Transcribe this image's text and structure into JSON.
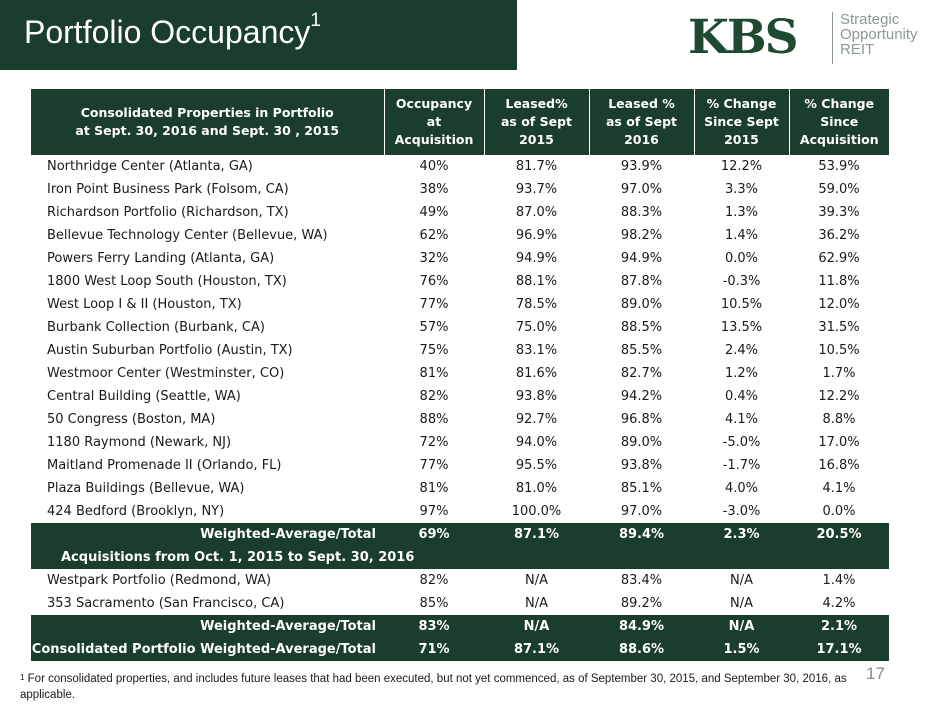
{
  "header": {
    "title": "Portfolio Occupancy",
    "title_sup": "1"
  },
  "logo": {
    "name": "KBS",
    "line1": "Strategic",
    "line2": "Opportunity",
    "line3": "REIT"
  },
  "table": {
    "headers": [
      "Consolidated Properties in Portfolio\nat Sept. 30, 2016 and Sept. 30 , 2015",
      "Occupancy at\nAcquisition",
      "Leased%\nas of Sept 2015",
      "Leased %\nas of Sept 2016",
      "% Change\nSince Sept\n2015",
      "% Change\nSince\nAcquisition"
    ],
    "rows": [
      [
        "Northridge Center (Atlanta, GA)",
        "40%",
        "81.7%",
        "93.9%",
        "12.2%",
        "53.9%"
      ],
      [
        "Iron Point Business Park (Folsom, CA)",
        "38%",
        "93.7%",
        "97.0%",
        "3.3%",
        "59.0%"
      ],
      [
        "Richardson Portfolio (Richardson, TX)",
        "49%",
        "87.0%",
        "88.3%",
        "1.3%",
        "39.3%"
      ],
      [
        "Bellevue Technology Center (Bellevue, WA)",
        "62%",
        "96.9%",
        "98.2%",
        "1.4%",
        "36.2%"
      ],
      [
        "Powers Ferry Landing (Atlanta, GA)",
        "32%",
        "94.9%",
        "94.9%",
        "0.0%",
        "62.9%"
      ],
      [
        "1800 West Loop South (Houston, TX)",
        "76%",
        "88.1%",
        "87.8%",
        "-0.3%",
        "11.8%"
      ],
      [
        "West Loop I & II (Houston, TX)",
        "77%",
        "78.5%",
        "89.0%",
        "10.5%",
        "12.0%"
      ],
      [
        "Burbank Collection (Burbank, CA)",
        "57%",
        "75.0%",
        "88.5%",
        "13.5%",
        "31.5%"
      ],
      [
        "Austin Suburban Portfolio (Austin, TX)",
        "75%",
        "83.1%",
        "85.5%",
        "2.4%",
        "10.5%"
      ],
      [
        "Westmoor Center (Westminster, CO)",
        "81%",
        "81.6%",
        "82.7%",
        "1.2%",
        "1.7%"
      ],
      [
        "Central Building (Seattle, WA)",
        "82%",
        "93.8%",
        "94.2%",
        "0.4%",
        "12.2%"
      ],
      [
        "50 Congress (Boston, MA)",
        "88%",
        "92.7%",
        "96.8%",
        "4.1%",
        "8.8%"
      ],
      [
        "1180 Raymond (Newark, NJ)",
        "72%",
        "94.0%",
        "89.0%",
        "-5.0%",
        "17.0%"
      ],
      [
        "Maitland Promenade II (Orlando, FL)",
        "77%",
        "95.5%",
        "93.8%",
        "-1.7%",
        "16.8%"
      ],
      [
        "Plaza Buildings (Bellevue, WA)",
        "81%",
        "81.0%",
        "85.1%",
        "4.0%",
        "4.1%"
      ],
      [
        "424 Bedford (Brooklyn, NY)",
        "97%",
        "100.0%",
        "97.0%",
        "-3.0%",
        "0.0%"
      ]
    ],
    "subtotal1": [
      "Weighted-Average/Total",
      "69%",
      "87.1%",
      "89.4%",
      "2.3%",
      "20.5%"
    ],
    "section_label": "Acquisitions from Oct. 1, 2015 to Sept. 30, 2016",
    "rows2": [
      [
        "Westpark Portfolio (Redmond, WA)",
        "82%",
        "N/A",
        "83.4%",
        "N/A",
        "1.4%"
      ],
      [
        "353 Sacramento (San Francisco, CA)",
        "85%",
        "N/A",
        "89.2%",
        "N/A",
        "4.2%"
      ]
    ],
    "subtotal2": [
      "Weighted-Average/Total",
      "83%",
      "N/A",
      "84.9%",
      "N/A",
      "2.1%"
    ],
    "total": [
      "Consolidated Portfolio Weighted-Average/Total",
      "71%",
      "87.1%",
      "88.6%",
      "1.5%",
      "17.1%"
    ]
  },
  "page_number": "17",
  "footnote": {
    "marker": "1",
    "text": " For consolidated properties, and includes future leases that had been executed, but not yet commenced, as of September 30, 2015, and September 30, 2016, as applicable."
  },
  "colors": {
    "brand_green": "#1b3d2b",
    "logo_green": "#1e4a31",
    "logo_gray": "#8a9a90"
  }
}
